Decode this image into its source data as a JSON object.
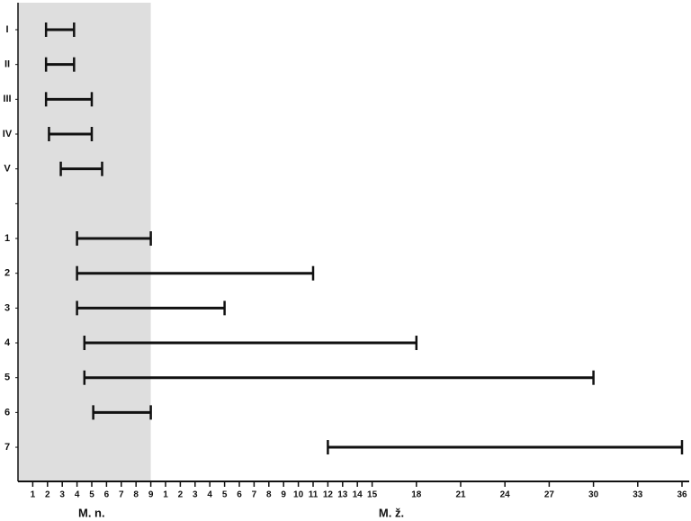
{
  "chart_data": {
    "type": "range",
    "categories": [
      "I",
      "II",
      "III",
      "IV",
      "V",
      null,
      "1",
      "2",
      "3",
      "4",
      "5",
      "6",
      "7"
    ],
    "start": [
      1.9,
      1.9,
      1.9,
      2.1,
      2.9,
      null,
      4,
      4,
      4,
      4.5,
      4.5,
      5.1,
      21
    ],
    "end": [
      3.8,
      3.8,
      5,
      5,
      5.7,
      null,
      9,
      20,
      14,
      27,
      39,
      9,
      45
    ],
    "color": "#111111",
    "xlim": [
      0,
      45
    ],
    "xticks": [
      1,
      2,
      3,
      4,
      5,
      6,
      7,
      8,
      9,
      {
        "value": 10,
        "label": "1"
      },
      {
        "value": 11,
        "label": "2"
      },
      {
        "value": 12,
        "label": "3"
      },
      {
        "value": 13,
        "label": "4"
      },
      {
        "value": 14,
        "label": "5"
      },
      {
        "value": 15,
        "label": "6"
      },
      {
        "value": 16,
        "label": "7"
      },
      {
        "value": 17,
        "label": "8"
      },
      {
        "value": 18,
        "label": "9"
      },
      {
        "value": 19,
        "label": "10"
      },
      {
        "value": 20,
        "label": "11"
      },
      {
        "value": 21,
        "label": "12"
      },
      {
        "value": 22,
        "label": "13"
      },
      {
        "value": 23,
        "label": "14"
      },
      {
        "value": 24,
        "label": "15"
      },
      {
        "value": 27,
        "label": "18"
      },
      {
        "value": 30,
        "label": "21"
      },
      {
        "value": 33,
        "label": "24"
      },
      {
        "value": 36,
        "label": "27"
      },
      {
        "value": 39,
        "label": "30"
      },
      {
        "value": 42,
        "label": "33"
      },
      {
        "value": 45,
        "label": "36"
      }
    ],
    "x_group_labels": [
      "M. n.",
      "M. ž."
    ],
    "shaded_span": [
      0,
      9
    ],
    "shade_color": "#dedede"
  }
}
